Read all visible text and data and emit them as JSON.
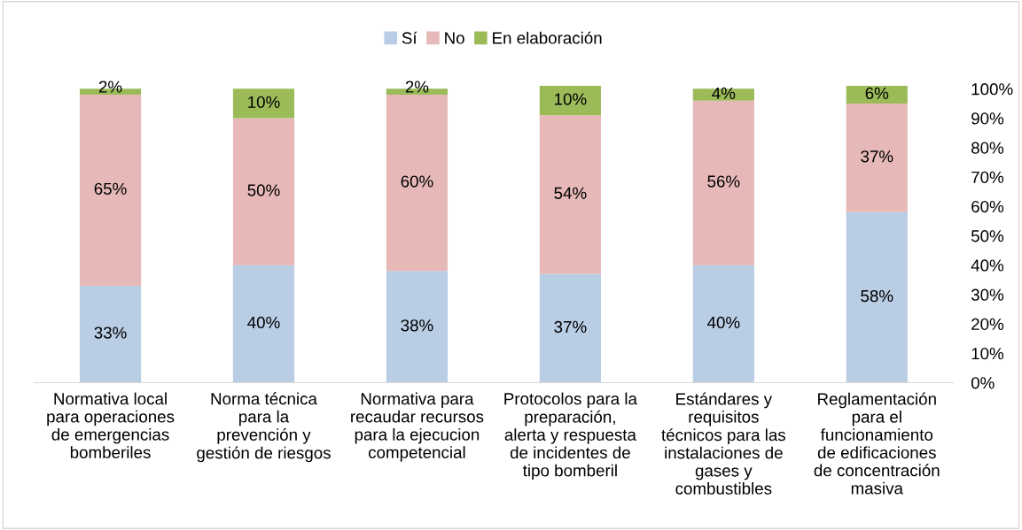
{
  "chart_data": {
    "type": "bar",
    "stacked": true,
    "categories": [
      "Normativa local\npara operaciones\nde emergencias\nbomberiles",
      "Norma técnica\npara la\nprevención y\ngestión de riesgos",
      "Normativa para\nrecaudar recursos\npara la ejecucion\ncompetencial",
      "Protocolos para la\npreparación,\nalerta y respuesta\nde incidentes de\ntipo bomberil",
      "Estándares y\nrequisitos\ntécnicos para las\ninstalaciones de\ngases y\ncombustibles",
      "Reglamentación\npara el\nfuncionamiento\nde edificaciones\nde concentración\nmasiva"
    ],
    "series": [
      {
        "name": "Sí",
        "color": "#b9cde5",
        "values": [
          33,
          40,
          38,
          37,
          40,
          58
        ],
        "value_labels": [
          "33%",
          "40%",
          "38%",
          "37%",
          "40%",
          "58%"
        ]
      },
      {
        "name": "No",
        "color": "#e6b9b8",
        "values": [
          65,
          50,
          60,
          54,
          56,
          37
        ],
        "value_labels": [
          "65%",
          "50%",
          "60%",
          "54%",
          "56%",
          "37%"
        ]
      },
      {
        "name": "En elaboración",
        "color": "#9bbb59",
        "values": [
          2,
          10,
          2,
          10,
          4,
          6
        ],
        "value_labels": [
          "2%",
          "10%",
          "2%",
          "10%",
          "4%",
          "6%"
        ]
      }
    ],
    "ylim": [
      0,
      101
    ],
    "yticks": [
      {
        "value": 0,
        "label": "0%"
      },
      {
        "value": 10,
        "label": "10%"
      },
      {
        "value": 20,
        "label": "20%"
      },
      {
        "value": 30,
        "label": "30%"
      },
      {
        "value": 40,
        "label": "40%"
      },
      {
        "value": 50,
        "label": "50%"
      },
      {
        "value": 60,
        "label": "60%"
      },
      {
        "value": 70,
        "label": "70%"
      },
      {
        "value": 80,
        "label": "80%"
      },
      {
        "value": 90,
        "label": "90%"
      },
      {
        "value": 100,
        "label": "100%"
      }
    ],
    "grid": false,
    "legend": "top"
  }
}
